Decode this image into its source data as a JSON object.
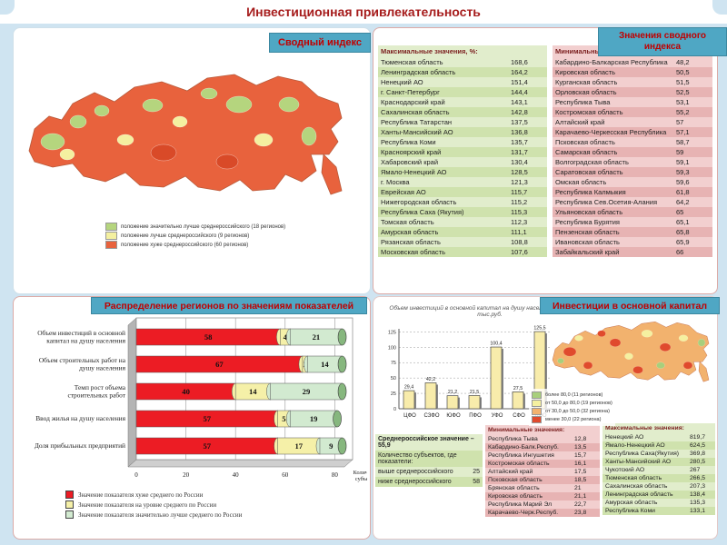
{
  "slide": {
    "title": "Инвестиционная привлекательность"
  },
  "panels": {
    "svodny_index": {
      "tab": "Сводный индекс",
      "legend": [
        {
          "color": "#b5d57e",
          "label": "положение значительно лучше среднероссийского (18 регионов)"
        },
        {
          "color": "#f4f0a0",
          "label": "положение лучше среднероссийского (9 регионов)"
        },
        {
          "color": "#e8623d",
          "label": "положение хуже среднероссийского (60 регионов)"
        }
      ]
    },
    "index_values": {
      "tab": "Значения сводного индекса",
      "max_table": {
        "title": "Максимальные значения, %:",
        "rows": [
          [
            "Тюменская область",
            "168,6"
          ],
          [
            "Ленинградская область",
            "164,2"
          ],
          [
            "Ненецкий АО",
            "151,4"
          ],
          [
            "г. Санкт-Петербург",
            "144,4"
          ],
          [
            "Краснодарский край",
            "143,1"
          ],
          [
            "Сахалинская область",
            "142,8"
          ],
          [
            "Республика Татарстан",
            "137,5"
          ],
          [
            "Ханты-Мансийский АО",
            "136,8"
          ],
          [
            "Республика Коми",
            "135,7"
          ],
          [
            "Красноярский край",
            "131,7"
          ],
          [
            "Хабаровский край",
            "130,4"
          ],
          [
            "Ямало-Ненецкий АО",
            "128,5"
          ],
          [
            "г. Москва",
            "121,3"
          ],
          [
            "Еврейская АО",
            "115,7"
          ],
          [
            "Нижегородская область",
            "115,2"
          ],
          [
            "Республика Саха (Якутия)",
            "115,3"
          ],
          [
            "Томская область",
            "112,3"
          ],
          [
            "Амурская область",
            "111,1"
          ],
          [
            "Рязанская область",
            "108,8"
          ],
          [
            "Московская область",
            "107,6"
          ]
        ]
      },
      "min_table": {
        "title": "Минимальные значения, %:",
        "rows": [
          [
            "Кабардино-Балкарская Республика",
            "48,2"
          ],
          [
            "Кировская область",
            "50,5"
          ],
          [
            "Курганская область",
            "51,5"
          ],
          [
            "Орловская область",
            "52,5"
          ],
          [
            "Республика Тыва",
            "53,1"
          ],
          [
            "Костромская область",
            "55,2"
          ],
          [
            "Алтайский край",
            "57"
          ],
          [
            "Карачаево-Черкесская Республика",
            "57,1"
          ],
          [
            "Псковская область",
            "58,7"
          ],
          [
            "Самарская область",
            "59"
          ],
          [
            "Волгоградская область",
            "59,1"
          ],
          [
            "Саратовская область",
            "59,3"
          ],
          [
            "Омская область",
            "59,6"
          ],
          [
            "Республика Калмыкия",
            "61,8"
          ],
          [
            "Республика Сев.Осетия-Алания",
            "64,2"
          ],
          [
            "Ульяновская область",
            "65"
          ],
          [
            "Республика Бурятия",
            "65,1"
          ],
          [
            "Пензенская область",
            "65,8"
          ],
          [
            "Ивановская область",
            "65,9"
          ],
          [
            "Забайкальский край",
            "66"
          ]
        ]
      }
    },
    "distribution": {
      "tab": "Распределение регионов по значениям показателей",
      "legend": [
        {
          "color": "#ec1c24",
          "label": "Значение показателя хуже среднего по России"
        },
        {
          "color": "#f5f0a8",
          "label": "Значение показателя на уровне среднего по России"
        },
        {
          "color": "#d2ead0",
          "label": "Значение показателя значительно лучше среднего по России"
        }
      ]
    },
    "investments": {
      "tab": "Инвестиции в основной капитал",
      "chart_title": "Объем инвестиций в основной капитал на душу населения за 2009 год, тыс.руб.",
      "map_legend": [
        {
          "color": "#a8cf7c",
          "label": "более 80,0 (11 регионов)"
        },
        {
          "color": "#f5f0a0",
          "label": "от 50,0 до 80,0 (19 регионов)"
        },
        {
          "color": "#f2b26e",
          "label": "от 30,0 до 50,0 (32 региона)"
        },
        {
          "color": "#e04a2d",
          "label": "менее 30,0 (22 региона)"
        }
      ],
      "summary": {
        "avg_label": "Среднероссийское значение – 55,9",
        "count_label": "Количество субъектов, где показатели:",
        "above_label": "выше среднероссийского",
        "above_value": "25",
        "below_label": "ниже среднероссийского",
        "below_value": "58"
      },
      "min_table": {
        "title": "Минимальные значения:",
        "rows": [
          [
            "Республика Тыва",
            "12,8"
          ],
          [
            "Кабардино-Балк.Респуб.",
            "13,5"
          ],
          [
            "Республика Ингушетия",
            "15,7"
          ],
          [
            "Костромская область",
            "16,1"
          ],
          [
            "Алтайский край",
            "17,5"
          ],
          [
            "Псковская область",
            "18,5"
          ],
          [
            "Брянская область",
            "21"
          ],
          [
            "Кировская область",
            "21,1"
          ],
          [
            "Республика Марий Эл",
            "22,7"
          ],
          [
            "Карачаево-Черк.Респуб.",
            "23,8"
          ]
        ]
      },
      "max_table": {
        "title": "Максимальные значения:",
        "rows": [
          [
            "Ненецкий АО",
            "819,7"
          ],
          [
            "Ямало-Ненецкий АО",
            "624,5"
          ],
          [
            "Республика Саха(Якутия)",
            "369,8"
          ],
          [
            "Ханты-Мансийский АО",
            "280,5"
          ],
          [
            "Чукотский АО",
            "267"
          ],
          [
            "Тюменская область",
            "266,5"
          ],
          [
            "Сахалинская область",
            "207,3"
          ],
          [
            "Ленинградская область",
            "138,4"
          ],
          [
            "Амурская область",
            "135,3"
          ],
          [
            "Республика Коми",
            "133,1"
          ]
        ]
      }
    }
  },
  "chart_data": [
    {
      "type": "bar",
      "orientation": "horizontal",
      "stacked": true,
      "title": "Распределение регионов по значениям показателей",
      "categories": [
        "Объем инвестиций в основной\nкапитал на душу населения",
        "Объем строительных работ на\nдушу населения",
        "Темп рост объема\nстроительных работ",
        "Ввод жилья на душу населения",
        "Доля прибыльных предприятий"
      ],
      "series": [
        {
          "name": "Значение показателя хуже среднего по России",
          "color": "#ec1c24",
          "values": [
            58,
            67,
            40,
            57,
            57
          ]
        },
        {
          "name": "Значение показателя на уровне среднего по России",
          "color": "#f5f0a8",
          "values": [
            4,
            2,
            14,
            5,
            17
          ]
        },
        {
          "name": "Значение показателя значительно лучше среднего по России",
          "color": "#d2ead0",
          "values": [
            21,
            14,
            29,
            19,
            9
          ]
        }
      ],
      "xlabel": "Количество\nсубъектов",
      "xlim": [
        0,
        80
      ],
      "xticks": [
        0,
        20,
        40,
        60,
        80
      ],
      "legend_position": "bottom",
      "grid": true
    },
    {
      "type": "bar",
      "orientation": "vertical",
      "title": "Объем инвестиций в основной капитал на душу населения за 2009 год, тыс.руб.",
      "categories": [
        "ЦФО",
        "СЗФО",
        "ЮФО",
        "ПФО",
        "УФО",
        "СФО",
        "ДФО"
      ],
      "values": [
        29.4,
        42.2,
        21.2,
        21.5,
        100.4,
        27.5,
        125.5
      ],
      "labels": [
        "29,4",
        "42,2",
        "21,2",
        "21,5",
        "100,4",
        "27,5",
        "125,5"
      ],
      "ylim": [
        0,
        130
      ],
      "yticks": [
        0,
        25,
        50,
        75,
        100,
        125
      ],
      "grid": "dashed"
    }
  ]
}
